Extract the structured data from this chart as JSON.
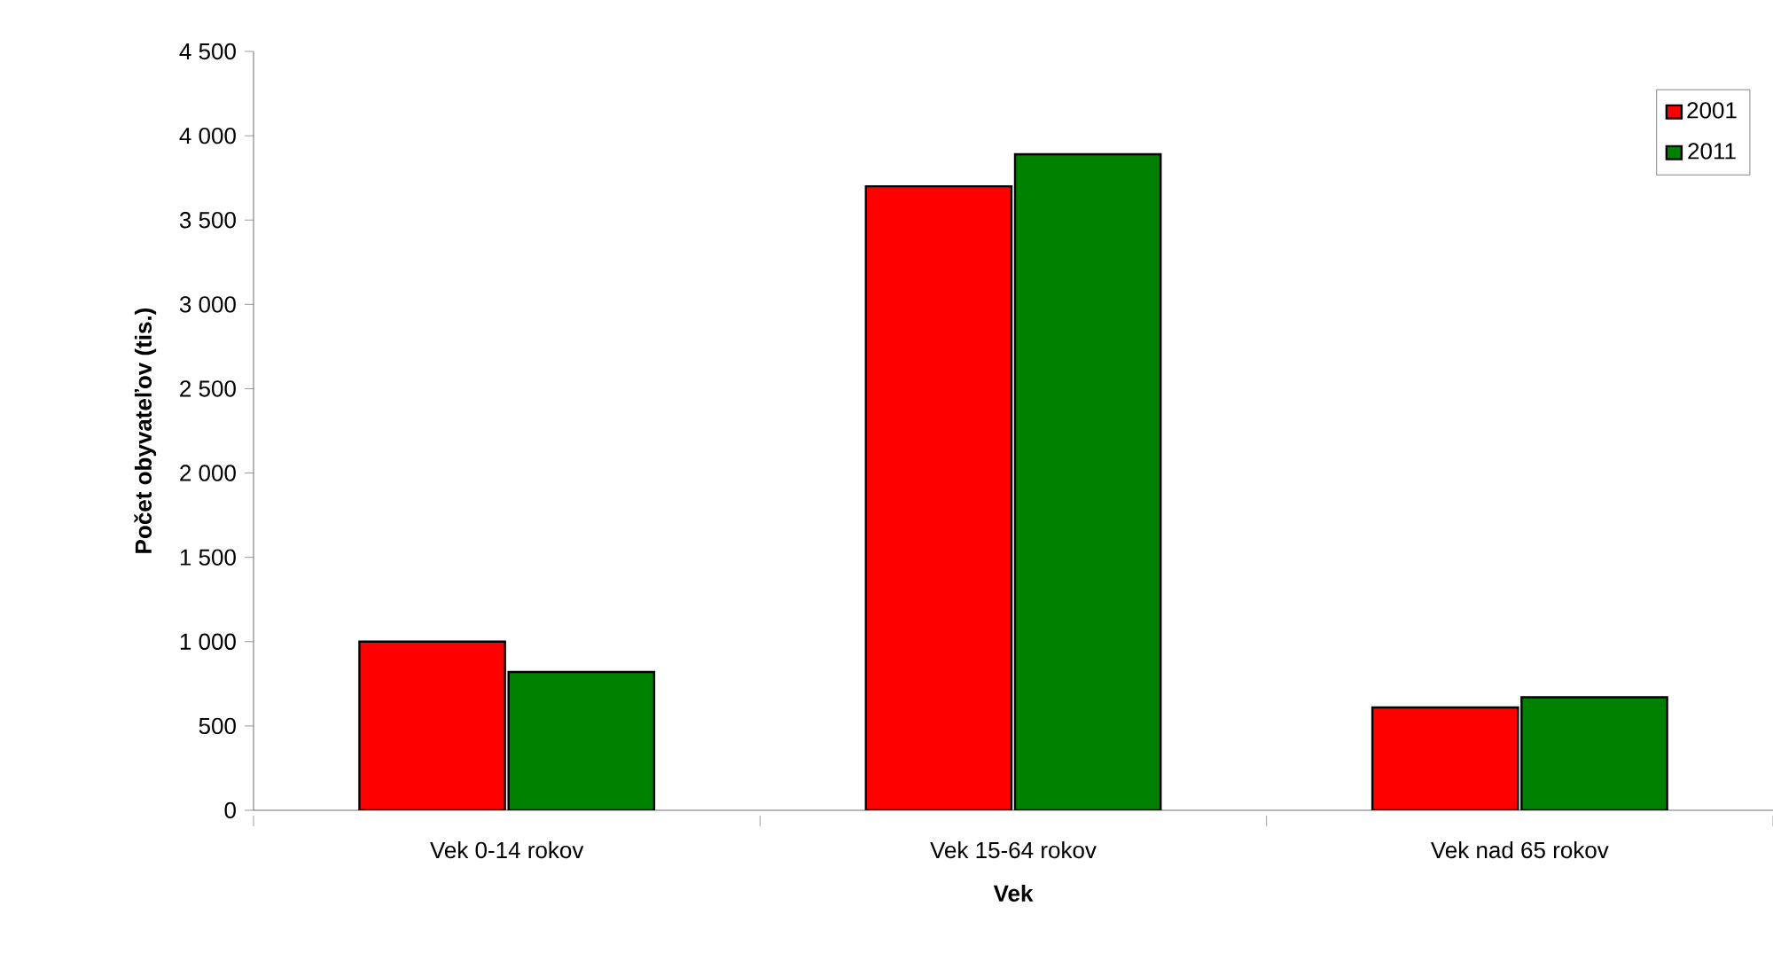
{
  "chart_data": {
    "type": "bar",
    "xlabel": "Vek",
    "ylabel": "Počet obyvateľov (tis.)",
    "categories": [
      "Vek 0-14 rokov",
      "Vek 15-64 rokov",
      "Vek nad 65 rokov"
    ],
    "series": [
      {
        "name": "2001",
        "color": "#ff0000",
        "values": [
          1000,
          3700,
          610
        ]
      },
      {
        "name": "2011",
        "color": "#008000",
        "values": [
          820,
          3890,
          670
        ]
      }
    ],
    "ylim": [
      0,
      4500
    ],
    "yticks": [
      0,
      500,
      {
        "value": 1000,
        "label": "1 000"
      },
      {
        "value": 1500,
        "label": "1 500"
      },
      {
        "value": 2000,
        "label": "2 000"
      },
      {
        "value": 2500,
        "label": "2 500"
      },
      {
        "value": 3000,
        "label": "3 000"
      },
      {
        "value": 3500,
        "label": "3 500"
      },
      {
        "value": 4000,
        "label": "4 000"
      },
      {
        "value": 4500,
        "label": "4 500"
      }
    ],
    "grid": false,
    "legend": "top right"
  }
}
